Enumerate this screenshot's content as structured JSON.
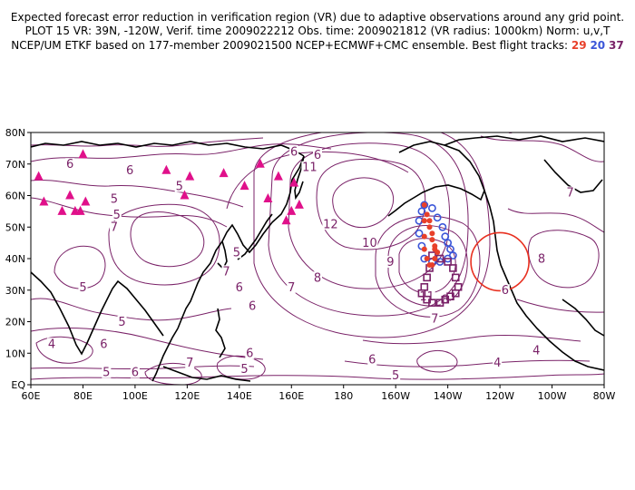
{
  "title": {
    "line1": "Expected forecast error reduction in verification region (VR) due to adaptive observations around any grid point.",
    "line2": "PLOT 15 VR: 39N, -120W, Verif. time 2009022212 Obs. time: 2009021812 (VR radius: 1000km) Norm: u,v,T",
    "line3_prefix": "NCEP/UM ETKF based on 177-member 2009021500 NCEP+ECMWF+CMC ensemble. Best flight tracks:",
    "track_29": "29",
    "track_20": "20",
    "track_37": "37"
  },
  "axes": {
    "lat_ticks": [
      "80N",
      "70N",
      "60N",
      "50N",
      "40N",
      "30N",
      "20N",
      "10N",
      "EQ"
    ],
    "lon_ticks": [
      "60E",
      "80E",
      "100E",
      "120E",
      "140E",
      "160E",
      "180",
      "160W",
      "140W",
      "120W",
      "100W",
      "80W"
    ]
  },
  "contour_labels": [
    {
      "text": "6",
      "lon": 75,
      "lat": 69
    },
    {
      "text": "6",
      "lon": 98,
      "lat": 67
    },
    {
      "text": "5",
      "lon": 117,
      "lat": 62
    },
    {
      "text": "5",
      "lon": 92,
      "lat": 58
    },
    {
      "text": "5",
      "lon": 93,
      "lat": 53
    },
    {
      "text": "7",
      "lon": 92,
      "lat": 49
    },
    {
      "text": "5",
      "lon": 139,
      "lat": 41
    },
    {
      "text": "7",
      "lon": 135,
      "lat": 35
    },
    {
      "text": "5",
      "lon": 80,
      "lat": 30
    },
    {
      "text": "6",
      "lon": 140,
      "lat": 30
    },
    {
      "text": "5",
      "lon": 95,
      "lat": 19
    },
    {
      "text": "6",
      "lon": 88,
      "lat": 12
    },
    {
      "text": "4",
      "lon": 68,
      "lat": 12
    },
    {
      "text": "6",
      "lon": 161,
      "lat": 73
    },
    {
      "text": "6",
      "lon": 170,
      "lat": 72
    },
    {
      "text": "11",
      "lon": 167,
      "lat": 68
    },
    {
      "text": "12",
      "lon": 175,
      "lat": 50
    },
    {
      "text": "10",
      "lon": 190,
      "lat": 44
    },
    {
      "text": "9",
      "lon": 198,
      "lat": 38
    },
    {
      "text": "8",
      "lon": 170,
      "lat": 33
    },
    {
      "text": "7",
      "lon": 160,
      "lat": 30
    },
    {
      "text": "6",
      "lon": 145,
      "lat": 24
    },
    {
      "text": "6",
      "lon": 144,
      "lat": 9
    },
    {
      "text": "5",
      "lon": 142,
      "lat": 4
    },
    {
      "text": "7",
      "lon": 121,
      "lat": 6
    },
    {
      "text": "6",
      "lon": 100,
      "lat": 3
    },
    {
      "text": "5",
      "lon": 89,
      "lat": 3
    },
    {
      "text": "6",
      "lon": 191,
      "lat": 7
    },
    {
      "text": "5",
      "lon": 200,
      "lat": 2
    },
    {
      "text": "4",
      "lon": 239,
      "lat": 6
    },
    {
      "text": "4",
      "lon": 254,
      "lat": 10
    },
    {
      "text": "8",
      "lon": 219,
      "lat": 26
    },
    {
      "text": "7",
      "lon": 215,
      "lat": 20
    },
    {
      "text": "11",
      "lon": 212,
      "lat": 27
    },
    {
      "text": "6",
      "lon": 242,
      "lat": 29
    },
    {
      "text": "8",
      "lon": 256,
      "lat": 39
    },
    {
      "text": "7",
      "lon": 267,
      "lat": 60
    },
    {
      "text": "8",
      "lon": 244,
      "lat": 80
    }
  ],
  "verification_region": {
    "lat": 39,
    "lon": -120,
    "radius_km": 1000
  },
  "observation_sites": [
    [
      63,
      66
    ],
    [
      65,
      58
    ],
    [
      72,
      55
    ],
    [
      75,
      60
    ],
    [
      77,
      55
    ],
    [
      79,
      55
    ],
    [
      81,
      58
    ],
    [
      80,
      73
    ],
    [
      112,
      68
    ],
    [
      121,
      66
    ],
    [
      119,
      60
    ],
    [
      134,
      67
    ],
    [
      142,
      63
    ],
    [
      148,
      70
    ],
    [
      151,
      59
    ],
    [
      155,
      66
    ],
    [
      161,
      64
    ],
    [
      160,
      55
    ],
    [
      163,
      57
    ],
    [
      158,
      52
    ]
  ],
  "flight_tracks": {
    "track_29": {
      "color": "#e8402a",
      "points": [
        [
          -149,
          57
        ],
        [
          -148,
          54
        ],
        [
          -147,
          52
        ],
        [
          -147,
          50
        ],
        [
          -146,
          48
        ],
        [
          -146,
          46
        ],
        [
          -145,
          44
        ],
        [
          -145,
          43
        ],
        [
          -144,
          42
        ],
        [
          -145,
          40
        ],
        [
          -146,
          38
        ],
        [
          -147,
          38
        ],
        [
          -148,
          40
        ],
        [
          -149,
          43
        ],
        [
          -149,
          47
        ],
        [
          -149,
          52
        ]
      ]
    },
    "track_20": {
      "color": "#3a55d8",
      "points": [
        [
          -149,
          57
        ],
        [
          -146,
          56
        ],
        [
          -144,
          53
        ],
        [
          -142,
          50
        ],
        [
          -141,
          47
        ],
        [
          -140,
          45
        ],
        [
          -139,
          43
        ],
        [
          -138,
          41
        ],
        [
          -140,
          40
        ],
        [
          -143,
          39
        ],
        [
          -146,
          39
        ],
        [
          -149,
          40
        ],
        [
          -150,
          44
        ],
        [
          -151,
          48
        ],
        [
          -151,
          52
        ],
        [
          -150,
          55
        ]
      ]
    },
    "track_37": {
      "color": "#7a2268",
      "points": [
        [
          -146,
          41
        ],
        [
          -147,
          37
        ],
        [
          -148,
          34
        ],
        [
          -149,
          31
        ],
        [
          -150,
          29
        ],
        [
          -148,
          27
        ],
        [
          -146,
          26
        ],
        [
          -143,
          26
        ],
        [
          -141,
          27
        ],
        [
          -139,
          28
        ],
        [
          -137,
          29
        ],
        [
          -136,
          31
        ],
        [
          -137,
          34
        ],
        [
          -138,
          37
        ],
        [
          -140,
          39
        ],
        [
          -143,
          40
        ]
      ]
    }
  },
  "colors": {
    "contour": "#7a2268",
    "site_marker": "#e0108a",
    "vr_circle": "#e83020"
  }
}
